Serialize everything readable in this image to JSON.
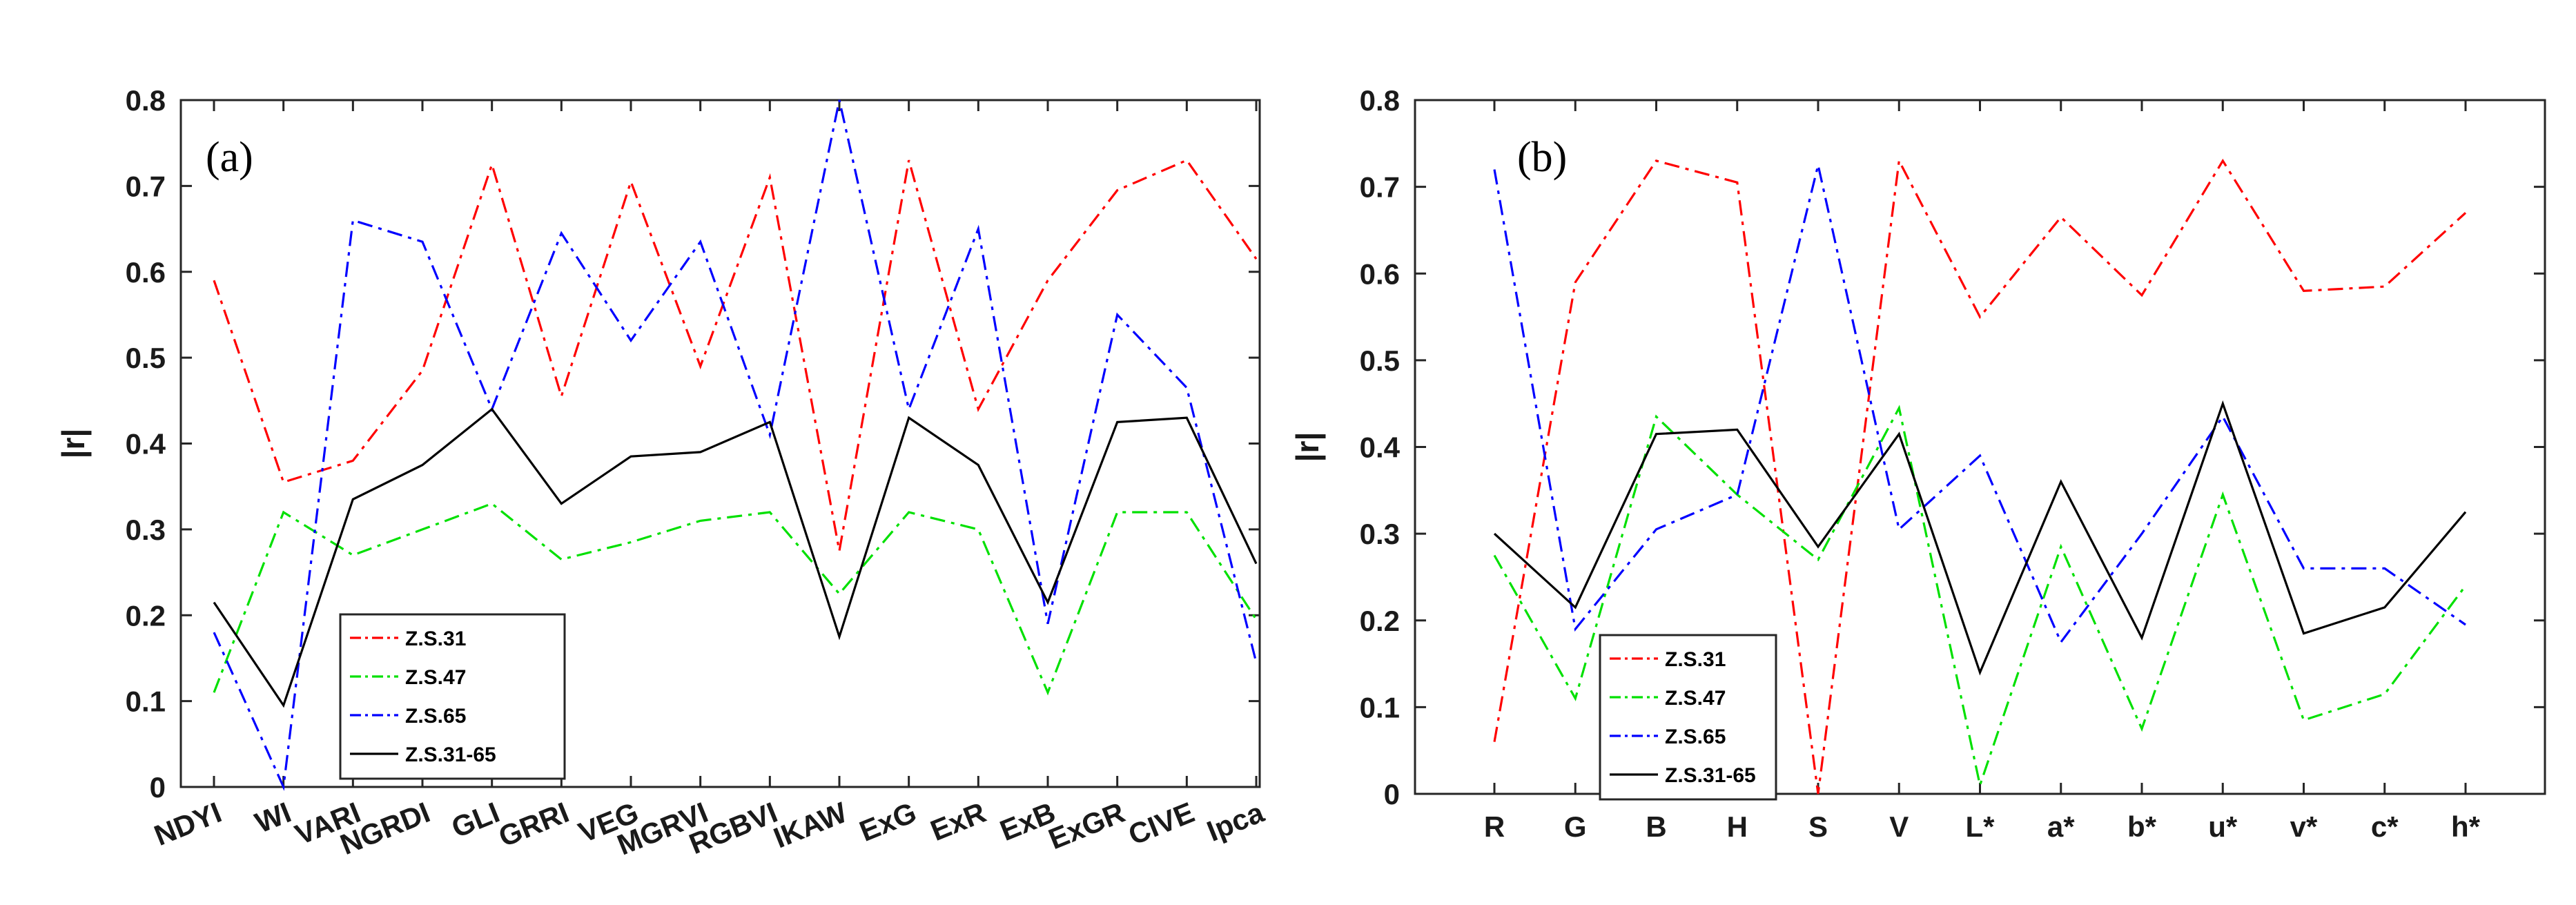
{
  "chart_data": [
    {
      "type": "line",
      "panel_label": "(a)",
      "ylabel": "|r|",
      "xlabel": "",
      "ylim": [
        0,
        0.8
      ],
      "yticks": [
        "0",
        "0.1",
        "0.2",
        "0.3",
        "0.4",
        "0.5",
        "0.6",
        "0.7",
        "0.8"
      ],
      "categories": [
        "NDYI",
        "WI",
        "VARI",
        "NGRDI",
        "GLI",
        "GRRI",
        "VEG",
        "MGRVI",
        "RGBVI",
        "IKAW",
        "ExG",
        "ExR",
        "ExB",
        "ExGR",
        "CIVE",
        "Ipca"
      ],
      "legend_position": "bottom-left",
      "series": [
        {
          "name": "Z.S.31",
          "color": "#ff0000",
          "dash": "dashdot",
          "values": [
            0.59,
            0.355,
            0.38,
            0.485,
            0.725,
            0.455,
            0.705,
            0.49,
            0.71,
            0.275,
            0.73,
            0.44,
            0.59,
            0.695,
            0.73,
            0.615
          ]
        },
        {
          "name": "Z.S.47",
          "color": "#00e000",
          "dash": "dashdot",
          "values": [
            0.11,
            0.32,
            0.27,
            0.3,
            0.33,
            0.265,
            0.285,
            0.31,
            0.32,
            0.225,
            0.32,
            0.3,
            0.11,
            0.32,
            0.32,
            0.195
          ]
        },
        {
          "name": "Z.S.65",
          "color": "#0000ff",
          "dash": "dashdot",
          "values": [
            0.18,
            0.0,
            0.66,
            0.635,
            0.44,
            0.645,
            0.52,
            0.635,
            0.41,
            0.8,
            0.44,
            0.65,
            0.19,
            0.55,
            0.465,
            0.145
          ]
        },
        {
          "name": "Z.S.31-65",
          "color": "#000000",
          "dash": "solid",
          "values": [
            0.215,
            0.095,
            0.335,
            0.375,
            0.44,
            0.33,
            0.385,
            0.39,
            0.425,
            0.175,
            0.43,
            0.375,
            0.215,
            0.425,
            0.43,
            0.26
          ]
        }
      ]
    },
    {
      "type": "line",
      "panel_label": "(b)",
      "ylabel": "|r|",
      "xlabel": "",
      "ylim": [
        0,
        0.8
      ],
      "yticks": [
        "0",
        "0.1",
        "0.2",
        "0.3",
        "0.4",
        "0.5",
        "0.6",
        "0.7",
        "0.8"
      ],
      "categories": [
        "R",
        "G",
        "B",
        "H",
        "S",
        "V",
        "L*",
        "a*",
        "b*",
        "u*",
        "v*",
        "c*",
        "h*"
      ],
      "legend_position": "bottom-left",
      "series": [
        {
          "name": "Z.S.31",
          "color": "#ff0000",
          "dash": "dashdot",
          "values": [
            0.06,
            0.59,
            0.73,
            0.705,
            0.0,
            0.73,
            0.55,
            0.665,
            0.575,
            0.73,
            0.58,
            0.585,
            0.67
          ]
        },
        {
          "name": "Z.S.47",
          "color": "#00e000",
          "dash": "dashdot",
          "values": [
            0.275,
            0.11,
            0.435,
            0.345,
            0.27,
            0.445,
            0.01,
            0.285,
            0.075,
            0.345,
            0.085,
            0.115,
            0.24
          ]
        },
        {
          "name": "Z.S.65",
          "color": "#0000ff",
          "dash": "dashdot",
          "values": [
            0.72,
            0.19,
            0.305,
            0.345,
            0.725,
            0.305,
            0.39,
            0.175,
            0.3,
            0.435,
            0.26,
            0.26,
            0.195
          ]
        },
        {
          "name": "Z.S.31-65",
          "color": "#000000",
          "dash": "solid",
          "values": [
            0.3,
            0.215,
            0.415,
            0.42,
            0.285,
            0.415,
            0.14,
            0.36,
            0.18,
            0.45,
            0.185,
            0.215,
            0.325
          ]
        }
      ]
    }
  ]
}
